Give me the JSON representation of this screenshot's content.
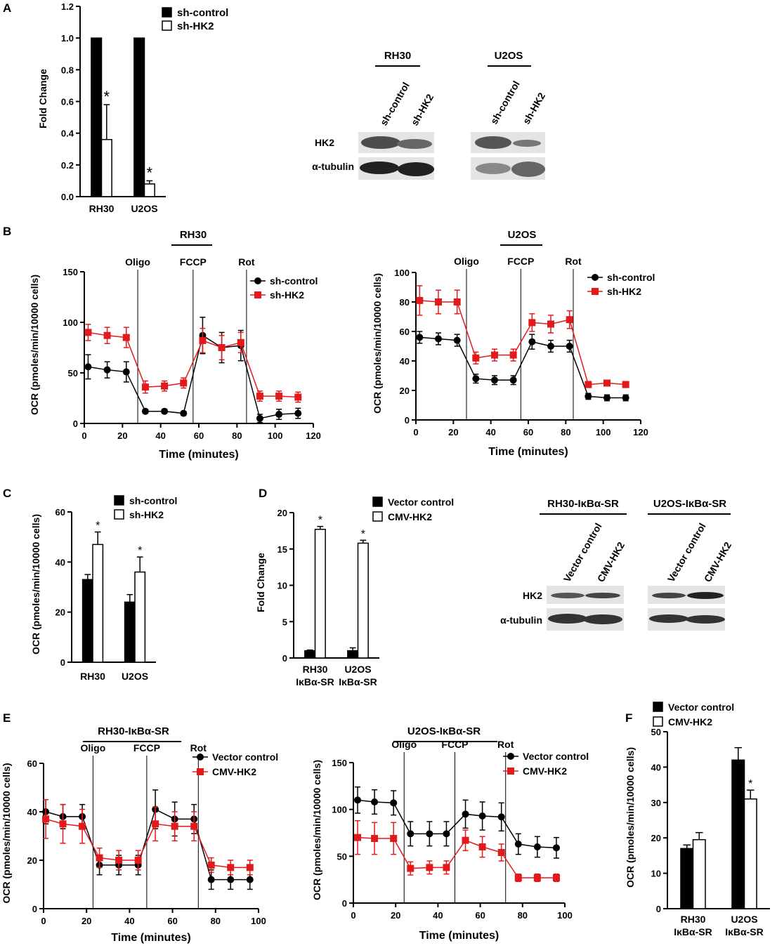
{
  "panels": {
    "A": "A",
    "B": "B",
    "C": "C",
    "D": "D",
    "E": "E",
    "F": "F"
  },
  "colors": {
    "black": "#000000",
    "red": "#e31a1c",
    "white": "#ffffff",
    "blot_bg": "#e4e4e4"
  },
  "chart_data": [
    {
      "id": "A",
      "type": "bar",
      "title": "",
      "xlabel": "",
      "ylabel": "Fold Change",
      "ylim": [
        0,
        1.2
      ],
      "yticks": [
        "0.0",
        "0.2",
        "0.4",
        "0.6",
        "0.8",
        "1.0",
        "1.2"
      ],
      "categories": [
        "RH30",
        "U2OS"
      ],
      "series": [
        {
          "name": "sh-control",
          "values": [
            1.0,
            1.0
          ],
          "errors": [
            0,
            0
          ],
          "fill": "#000000"
        },
        {
          "name": "sh-HK2",
          "values": [
            0.36,
            0.08
          ],
          "errors": [
            0.22,
            0.02
          ],
          "fill": "#ffffff"
        }
      ],
      "annotations": [
        "*",
        "*"
      ],
      "legend": "top-right"
    },
    {
      "id": "B1",
      "type": "line",
      "title": "RH30",
      "xlabel": "Time (minutes)",
      "ylabel": "OCR (pmoles/min/10000 cells)",
      "xlim": [
        0,
        120
      ],
      "ylim": [
        0,
        150
      ],
      "xticks": [
        "0",
        "20",
        "40",
        "60",
        "80",
        "100",
        "120"
      ],
      "yticks": [
        "0",
        "50",
        "100",
        "150"
      ],
      "markers": [
        {
          "label": "Oligo",
          "x": 28
        },
        {
          "label": "FCCP",
          "x": 57
        },
        {
          "label": "Rot",
          "x": 85
        }
      ],
      "x": [
        2,
        12,
        22,
        32,
        42,
        52,
        62,
        72,
        82,
        92,
        102,
        112
      ],
      "series": [
        {
          "name": "sh-control",
          "color": "#000000",
          "marker": "circle",
          "values": [
            56,
            53,
            51,
            12,
            12,
            10,
            87,
            75,
            77,
            5,
            9,
            10
          ],
          "errors": [
            12,
            8,
            10,
            2,
            2,
            2,
            18,
            15,
            15,
            4,
            5,
            5
          ]
        },
        {
          "name": "sh-HK2",
          "color": "#e31a1c",
          "marker": "square",
          "values": [
            90,
            87,
            85,
            36,
            37,
            40,
            82,
            75,
            80,
            27,
            27,
            26
          ],
          "errors": [
            8,
            8,
            10,
            6,
            5,
            5,
            12,
            12,
            10,
            5,
            5,
            5
          ]
        }
      ],
      "legend": "top-right"
    },
    {
      "id": "B2",
      "type": "line",
      "title": "U2OS",
      "xlabel": "Time (minutes)",
      "ylabel": "OCR (pmoles/min/10000 cells)",
      "xlim": [
        0,
        120
      ],
      "ylim": [
        0,
        100
      ],
      "xticks": [
        "0",
        "20",
        "40",
        "60",
        "80",
        "100",
        "120"
      ],
      "yticks": [
        "0",
        "20",
        "40",
        "60",
        "80",
        "100"
      ],
      "markers": [
        {
          "label": "Oligo",
          "x": 27
        },
        {
          "label": "FCCP",
          "x": 56
        },
        {
          "label": "Rot",
          "x": 84
        }
      ],
      "x": [
        2,
        12,
        22,
        32,
        42,
        52,
        62,
        72,
        82,
        92,
        102,
        112
      ],
      "series": [
        {
          "name": "sh-control",
          "color": "#000000",
          "marker": "circle",
          "values": [
            56,
            55,
            54,
            28,
            27,
            27,
            53,
            50,
            50,
            16,
            15,
            15
          ],
          "errors": [
            4,
            4,
            4,
            3,
            3,
            3,
            5,
            4,
            4,
            2,
            2,
            2
          ]
        },
        {
          "name": "sh-HK2",
          "color": "#e31a1c",
          "marker": "square",
          "values": [
            81,
            80,
            80,
            42,
            44,
            44,
            66,
            65,
            68,
            24,
            25,
            24
          ],
          "errors": [
            10,
            8,
            8,
            4,
            4,
            4,
            6,
            6,
            6,
            2,
            2,
            2
          ]
        }
      ],
      "legend": "top-right"
    },
    {
      "id": "C",
      "type": "bar",
      "title": "",
      "xlabel": "",
      "ylabel": "OCR (pmoles/min/10000 cells)",
      "ylim": [
        0,
        60
      ],
      "yticks": [
        "0",
        "20",
        "40",
        "60"
      ],
      "categories": [
        "RH30",
        "U2OS"
      ],
      "series": [
        {
          "name": "sh-control",
          "values": [
            33,
            24
          ],
          "errors": [
            2,
            3
          ],
          "fill": "#000000"
        },
        {
          "name": "sh-HK2",
          "values": [
            47,
            36
          ],
          "errors": [
            5,
            6
          ],
          "fill": "#ffffff"
        }
      ],
      "annotations": [
        "*",
        "*"
      ],
      "legend": "top-right"
    },
    {
      "id": "D",
      "type": "bar",
      "title": "",
      "xlabel": "",
      "ylabel": "Fold Change",
      "ylim": [
        0,
        20
      ],
      "yticks": [
        "0",
        "5",
        "10",
        "15",
        "20"
      ],
      "categories": [
        "RH30",
        "U2OS"
      ],
      "category_sublabels": [
        "IκBα-SR",
        "IκBα-SR"
      ],
      "series": [
        {
          "name": "Vector control",
          "values": [
            1.0,
            1.0
          ],
          "errors": [
            0.1,
            0.4
          ],
          "fill": "#000000"
        },
        {
          "name": "CMV-HK2",
          "values": [
            17.7,
            15.8
          ],
          "errors": [
            0.4,
            0.4
          ],
          "fill": "#ffffff"
        }
      ],
      "annotations": [
        "*",
        "*"
      ],
      "legend": "top-right"
    },
    {
      "id": "E1",
      "type": "line",
      "title": "RH30-IκBα-SR",
      "xlabel": "Time (minutes)",
      "ylabel": "OCR (pmoles/min/10000 cells)",
      "xlim": [
        0,
        100
      ],
      "ylim": [
        0,
        60
      ],
      "xticks": [
        "0",
        "20",
        "40",
        "60",
        "80",
        "100"
      ],
      "yticks": [
        "0",
        "20",
        "40",
        "60"
      ],
      "markers": [
        {
          "label": "Oligo",
          "x": 23
        },
        {
          "label": "FCCP",
          "x": 48
        },
        {
          "label": "Rot",
          "x": 72
        }
      ],
      "x": [
        1,
        9,
        18,
        26,
        35,
        44,
        52,
        61,
        70,
        78,
        87,
        96
      ],
      "series": [
        {
          "name": "Vector control",
          "color": "#000000",
          "marker": "circle",
          "values": [
            40,
            38,
            38,
            18,
            18,
            18,
            41,
            37,
            37,
            12,
            12,
            12
          ],
          "errors": [
            5,
            5,
            5,
            4,
            4,
            4,
            8,
            7,
            6,
            4,
            4,
            4
          ]
        },
        {
          "name": "CMV-HK2",
          "color": "#e31a1c",
          "marker": "square",
          "values": [
            37,
            35,
            34,
            21,
            20,
            20,
            35,
            34,
            34,
            18,
            17,
            17
          ],
          "errors": [
            8,
            8,
            7,
            4,
            4,
            4,
            7,
            6,
            6,
            3,
            3,
            3
          ]
        }
      ],
      "legend": "top-right"
    },
    {
      "id": "E2",
      "type": "line",
      "title": "U2OS-IκBα-SR",
      "xlabel": "Time (minutes)",
      "ylabel": "OCR (pmoles/min/10000 cells)",
      "xlim": [
        0,
        100
      ],
      "ylim": [
        0,
        150
      ],
      "xticks": [
        "0",
        "20",
        "40",
        "60",
        "80",
        "100"
      ],
      "yticks": [
        "0",
        "50",
        "100",
        "150"
      ],
      "markers": [
        {
          "label": "Oligo",
          "x": 24
        },
        {
          "label": "FCCP",
          "x": 48
        },
        {
          "label": "Rot",
          "x": 72
        }
      ],
      "x": [
        2,
        10,
        19,
        27,
        36,
        44,
        53,
        61,
        70,
        78,
        87,
        96
      ],
      "series": [
        {
          "name": "Vector control",
          "color": "#000000",
          "marker": "circle",
          "values": [
            110,
            108,
            107,
            74,
            74,
            74,
            95,
            93,
            92,
            63,
            60,
            59
          ],
          "errors": [
            14,
            13,
            13,
            13,
            13,
            13,
            15,
            15,
            15,
            11,
            11,
            11
          ]
        },
        {
          "name": "CMV-HK2",
          "color": "#e31a1c",
          "marker": "square",
          "values": [
            70,
            69,
            69,
            37,
            38,
            38,
            67,
            60,
            54,
            27,
            27,
            27
          ],
          "errors": [
            18,
            17,
            17,
            7,
            7,
            7,
            11,
            11,
            9,
            4,
            4,
            4
          ]
        }
      ],
      "legend": "top-right"
    },
    {
      "id": "F",
      "type": "bar",
      "title": "",
      "xlabel": "",
      "ylabel": "OCR (pmoles/min/10000 cells)",
      "ylim": [
        0,
        50
      ],
      "yticks": [
        "0",
        "10",
        "20",
        "30",
        "40",
        "50"
      ],
      "categories": [
        "RH30",
        "U2OS"
      ],
      "category_sublabels": [
        "IκBα-SR",
        "IκBα-SR"
      ],
      "series": [
        {
          "name": "Vector control",
          "values": [
            17,
            42
          ],
          "errors": [
            1,
            3.5
          ],
          "fill": "#000000"
        },
        {
          "name": "CMV-HK2",
          "values": [
            19.5,
            31
          ],
          "errors": [
            2,
            2.5
          ],
          "fill": "#ffffff"
        }
      ],
      "annotations": [
        "",
        "*"
      ],
      "legend": "top-right"
    }
  ],
  "blots": [
    {
      "id": "A",
      "groups": [
        "RH30",
        "U2OS"
      ],
      "lanes": [
        "sh-control",
        "sh-HK2",
        "sh-control",
        "sh-HK2"
      ],
      "rows": [
        "HK2",
        "α-tubulin"
      ]
    },
    {
      "id": "D",
      "groups": [
        "RH30-IκBα-SR",
        "U2OS-IκBα-SR"
      ],
      "lanes": [
        "Vector control",
        "CMV-HK2",
        "Vector control",
        "CMV-HK2"
      ],
      "rows": [
        "HK2",
        "α-tubulin"
      ]
    }
  ]
}
